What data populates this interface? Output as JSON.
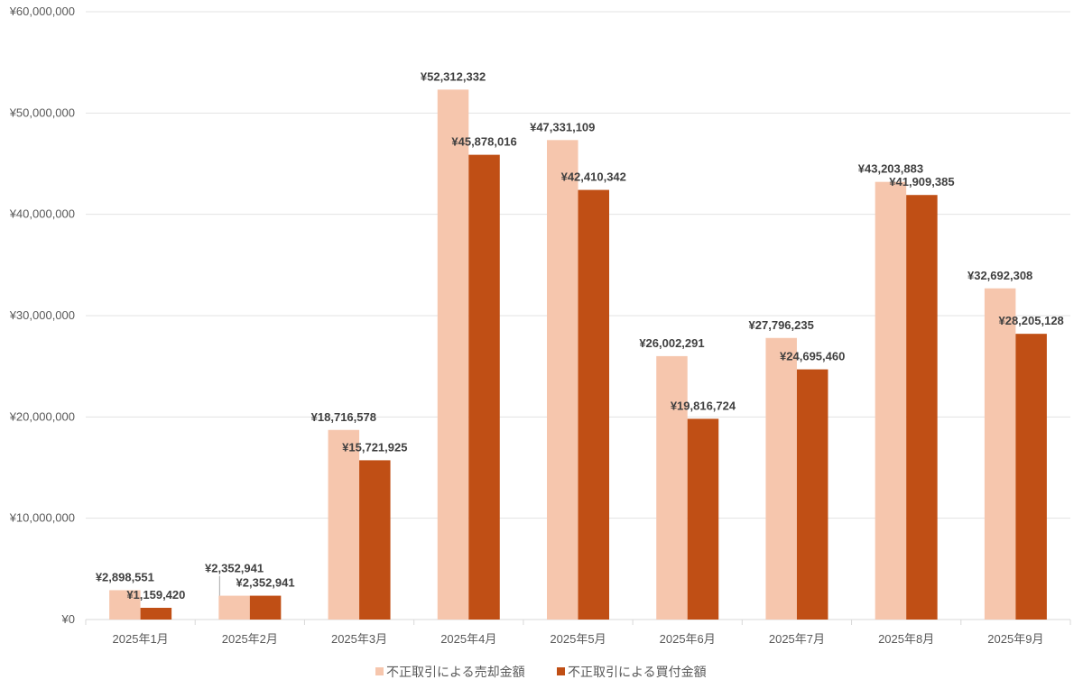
{
  "chart_data": {
    "type": "bar",
    "title": "",
    "xlabel": "",
    "ylabel": "",
    "ylim": [
      0,
      60000000
    ],
    "y_ticks": [
      0,
      10000000,
      20000000,
      30000000,
      40000000,
      50000000,
      60000000
    ],
    "y_tick_labels": [
      "¥0",
      "¥10,000,000",
      "¥20,000,000",
      "¥30,000,000",
      "¥40,000,000",
      "¥50,000,000",
      "¥60,000,000"
    ],
    "grid": true,
    "legend_position": "bottom",
    "categories": [
      "2025年1月",
      "2025年2月",
      "2025年3月",
      "2025年4月",
      "2025年5月",
      "2025年6月",
      "2025年7月",
      "2025年8月",
      "2025年9月"
    ],
    "series": [
      {
        "name": "不正取引による売却金額",
        "color": "#F6C6AD",
        "values": [
          2898551,
          2352941,
          18716578,
          52312332,
          47331109,
          26002291,
          27796235,
          43203883,
          32692308
        ],
        "labels": [
          "¥2,898,551",
          "¥2,352,941",
          "¥18,716,578",
          "¥52,312,332",
          "¥47,331,109",
          "¥26,002,291",
          "¥27,796,235",
          "¥43,203,883",
          "¥32,692,308"
        ]
      },
      {
        "name": "不正取引による買付金額",
        "color": "#C04F15",
        "values": [
          1159420,
          2352941,
          15721925,
          45878016,
          42410342,
          19816724,
          24695460,
          41909385,
          28205128
        ],
        "labels": [
          "¥1,159,420",
          "¥2,352,941",
          "¥15,721,925",
          "¥45,878,016",
          "¥42,410,342",
          "¥19,816,724",
          "¥24,695,460",
          "¥41,909,385",
          "¥28,205,128"
        ]
      }
    ]
  }
}
